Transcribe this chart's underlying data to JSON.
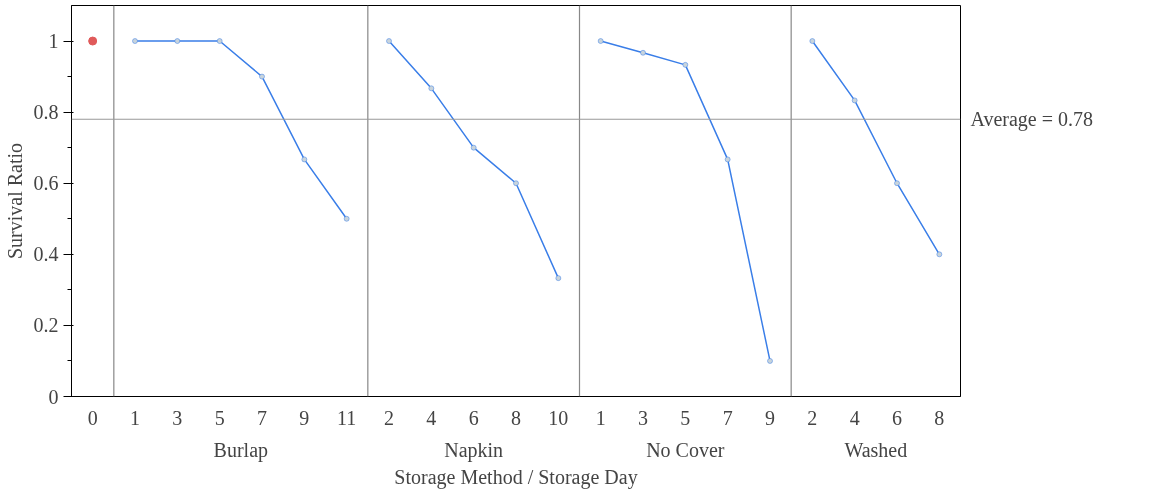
{
  "chart_data": {
    "type": "line",
    "ylabel": "Survival Ratio",
    "xlabel": "Storage Method / Storage Day",
    "categories": [
      "0",
      "1",
      "3",
      "5",
      "7",
      "9",
      "11",
      "2",
      "4",
      "6",
      "8",
      "10",
      "1",
      "3",
      "5",
      "7",
      "9",
      "2",
      "4",
      "6",
      "8"
    ],
    "series": [
      {
        "type": "scatter",
        "color": "#e05a5a",
        "values": [
          1,
          null,
          null,
          null,
          null,
          null,
          null,
          null,
          null,
          null,
          null,
          null,
          null,
          null,
          null,
          null,
          null,
          null,
          null,
          null,
          null
        ]
      },
      {
        "color": "#3a7ee8",
        "values": [
          null,
          1,
          1,
          1,
          0.9,
          0.667,
          0.5,
          null,
          null,
          null,
          null,
          null,
          null,
          null,
          null,
          null,
          null,
          null,
          null,
          null,
          null
        ]
      },
      {
        "color": "#3a7ee8",
        "values": [
          null,
          null,
          null,
          null,
          null,
          null,
          null,
          1,
          0.867,
          0.7,
          0.6,
          0.333,
          null,
          null,
          null,
          null,
          null,
          null,
          null,
          null,
          null
        ]
      },
      {
        "color": "#3a7ee8",
        "values": [
          null,
          null,
          null,
          null,
          null,
          null,
          null,
          null,
          null,
          null,
          null,
          null,
          1,
          0.967,
          0.933,
          0.667,
          0.1,
          null,
          null,
          null,
          null
        ]
      },
      {
        "color": "#3a7ee8",
        "values": [
          null,
          null,
          null,
          null,
          null,
          null,
          null,
          null,
          null,
          null,
          null,
          null,
          null,
          null,
          null,
          null,
          null,
          1,
          0.833,
          0.6,
          0.4
        ]
      }
    ],
    "annotations": [
      "Burlap",
      "Napkin",
      "No Cover",
      "Washed"
    ],
    "ylim": [
      0,
      1.1
    ],
    "yticks": [
      0,
      0.2,
      0.4,
      0.6,
      0.8,
      1
    ],
    "ref_lines": [
      {
        "axis": "y",
        "value": 0.78,
        "label": "Average = 0.78",
        "color": "#999999"
      }
    ],
    "grid": false,
    "marker": "circle",
    "line_style": "solid"
  }
}
